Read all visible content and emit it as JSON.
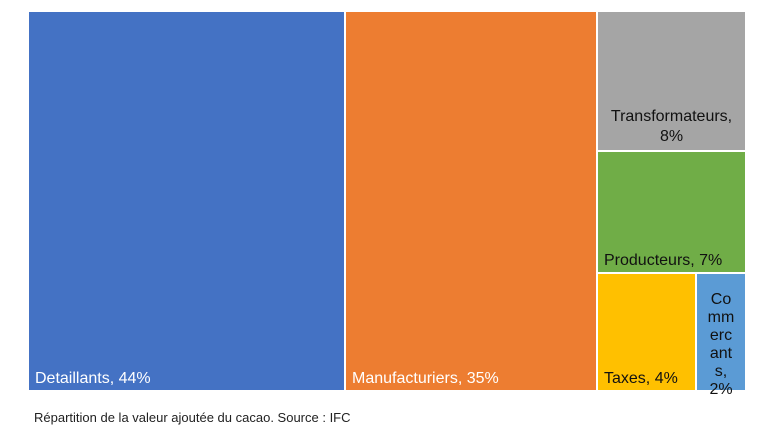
{
  "chart_data": {
    "type": "treemap",
    "items": [
      {
        "label": "Detaillants",
        "value_label": "44%",
        "value": 44,
        "color": "#4472C4",
        "text_color": "#ffffff"
      },
      {
        "label": "Manufacturiers",
        "value_label": "35%",
        "value": 35,
        "color": "#ED7D31",
        "text_color": "#ffffff"
      },
      {
        "label": "Transformateurs,",
        "value_label": "8%",
        "value": 8,
        "color": "#A5A5A5",
        "text_color": "#111111"
      },
      {
        "label": "Producteurs",
        "value_label": "7%",
        "value": 7,
        "color": "#70AD47",
        "text_color": "#111111"
      },
      {
        "label": "Taxes",
        "value_label": "4%",
        "value": 4,
        "color": "#FFC000",
        "text_color": "#111111"
      },
      {
        "label": "Commercants",
        "value_label": "2%",
        "value": 2,
        "color": "#5B9BD5",
        "text_color": "#111111"
      }
    ]
  },
  "caption": "Répartition de la valeur ajoutée du cacao. Source : IFC"
}
